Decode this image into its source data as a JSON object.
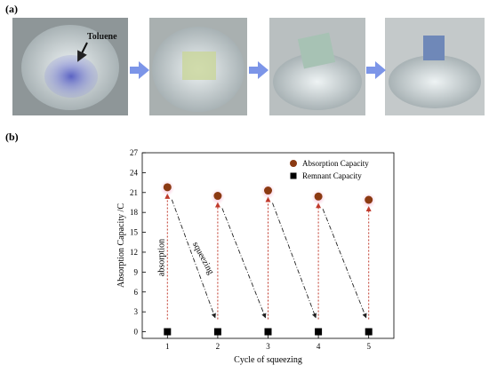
{
  "figure": {
    "panel_a_label": "(a)",
    "panel_b_label": "(b)",
    "photo_annotation": "Toluene"
  },
  "chart_data": {
    "type": "scatter",
    "x_label": "Cycle of squeezing",
    "y_label": "Absorption Capacity /C",
    "annotations": [
      "absorption",
      "squeezing"
    ],
    "x": [
      1,
      2,
      3,
      4,
      5
    ],
    "series": [
      {
        "name": "Absorption Capacity",
        "color": "#8b3a12",
        "marker": "circle",
        "values": [
          21.8,
          20.5,
          21.3,
          20.4,
          19.9
        ]
      },
      {
        "name": "Remnant Capacity",
        "color": "#000000",
        "marker": "square",
        "values": [
          0,
          0,
          0,
          0,
          0
        ]
      }
    ],
    "xlim": [
      0.5,
      5.5
    ],
    "xticks": [
      1,
      2,
      3,
      4,
      5
    ],
    "ylim": [
      -1,
      27
    ],
    "yticks": [
      0,
      3,
      6,
      9,
      12,
      15,
      18,
      21,
      24,
      27
    ],
    "legend": "upper right"
  }
}
